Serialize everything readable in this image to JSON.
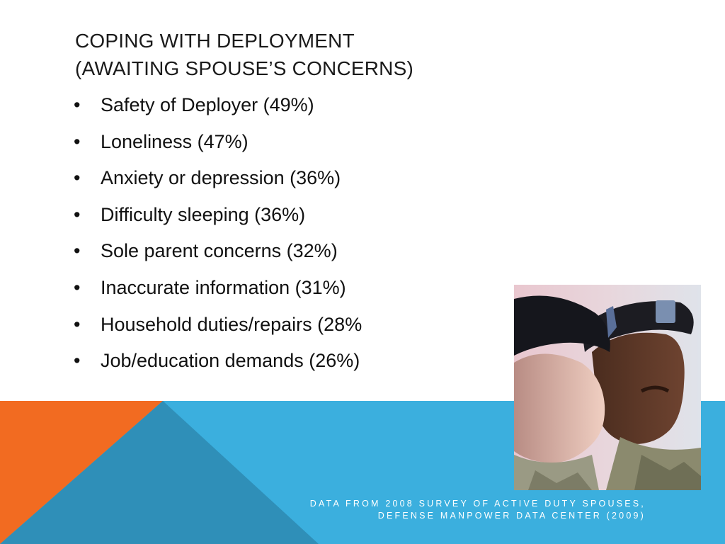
{
  "slide": {
    "title_line1": "Coping with Deployment",
    "title_line2": "(Awaiting Spouse’s Concerns)",
    "bullet_glyph": "•",
    "bullets": [
      "Safety of Deployer (49%)",
      "Loneliness (47%)",
      "Anxiety or depression (36%)",
      "Difficulty sleeping (36%)",
      "Sole parent concerns (32%)",
      "Inaccurate information (31%)",
      "Household duties/repairs (28%",
      "Job/education demands (26%)"
    ],
    "caption_line1": "Data from 2008 Survey of Active Duty Spouses,",
    "caption_line2": "Defense Manpower Data Center (2009)",
    "photo_icon": "soldiers-photo"
  },
  "colors": {
    "orange": "#f26b21",
    "light_blue": "#3bafde",
    "dark_blue": "#2f8fb8",
    "text": "#111111"
  }
}
